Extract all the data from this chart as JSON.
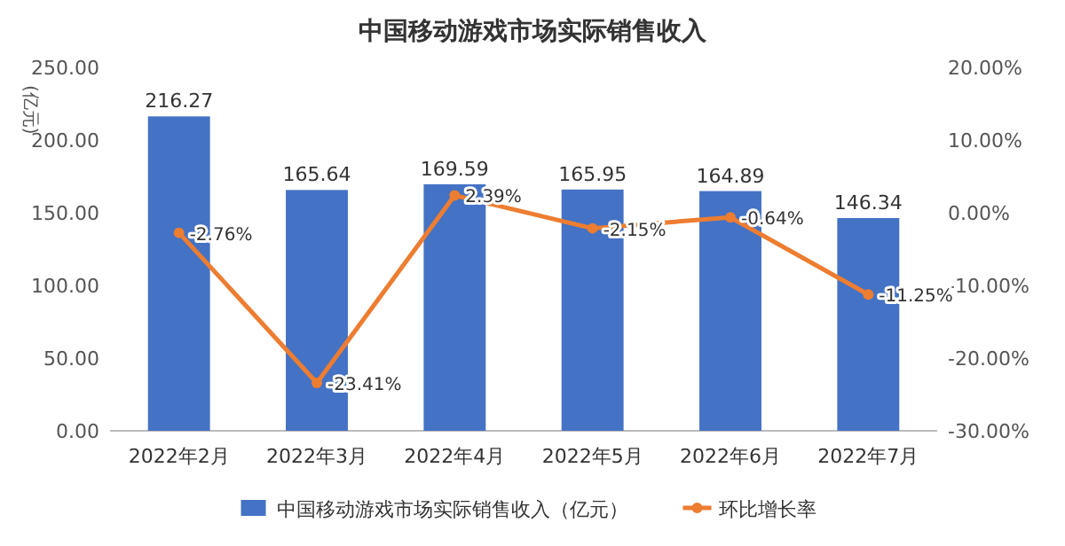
{
  "chart_data": {
    "type": "bar",
    "title": "中国移动游戏市场实际销售收入",
    "ylabel": "(亿元)",
    "categories": [
      "2022年2月",
      "2022年3月",
      "2022年4月",
      "2022年5月",
      "2022年6月",
      "2022年7月"
    ],
    "series": [
      {
        "name": "中国移动游戏市场实际销售收入（亿元）",
        "color": "#4472c4",
        "values": [
          216.27,
          165.64,
          169.59,
          165.95,
          164.89,
          146.34
        ],
        "value_labels": [
          "216.27",
          "165.64",
          "169.59",
          "165.95",
          "164.89",
          "146.34"
        ]
      },
      {
        "name": "环比增长率",
        "type": "line",
        "axis": "y2",
        "color": "#ed7d31",
        "values": [
          -2.76,
          -23.41,
          2.39,
          -2.15,
          -0.64,
          -11.25
        ],
        "value_labels": [
          "-2.76%",
          "-23.41%",
          "2.39%",
          "-2.15%",
          "-0.64%",
          "-11.25%"
        ]
      }
    ],
    "ylim": [
      0,
      250
    ],
    "yticks": [
      {
        "value": 0,
        "label": "0.00"
      },
      {
        "value": 50,
        "label": "50.00"
      },
      {
        "value": 100,
        "label": "100.00"
      },
      {
        "value": 150,
        "label": "150.00"
      },
      {
        "value": 200,
        "label": "200.00"
      },
      {
        "value": 250,
        "label": "250.00"
      }
    ],
    "y2lim": [
      -30,
      20
    ],
    "y2ticks": [
      {
        "value": -30,
        "label": "-30.00%"
      },
      {
        "value": -20,
        "label": "-20.00%"
      },
      {
        "value": -10,
        "label": "-10.00%"
      },
      {
        "value": 0,
        "label": "0.00%"
      },
      {
        "value": 10,
        "label": "10.00%"
      },
      {
        "value": 20,
        "label": "20.00%"
      }
    ],
    "legend": "bottom",
    "marker": "circle",
    "line_style": "solid"
  }
}
